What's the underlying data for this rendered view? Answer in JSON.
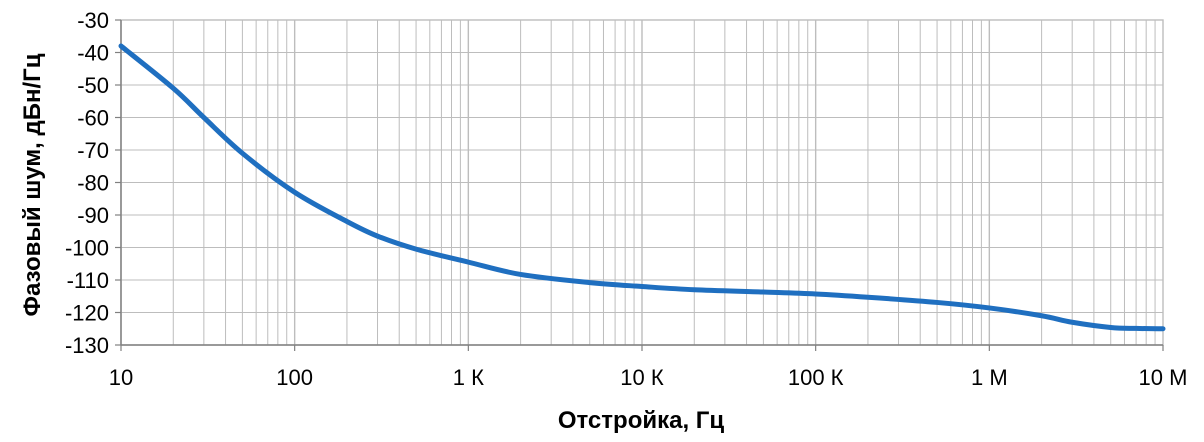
{
  "chart_data": {
    "type": "line",
    "xscale": "log",
    "xlim": [
      10,
      10000000
    ],
    "ylim": [
      -130,
      -30
    ],
    "xlabel": "Отстройка, Гц",
    "ylabel": "Фазовый шум, дБн/Гц",
    "x_ticks": [
      {
        "value": 10,
        "label": "10"
      },
      {
        "value": 100,
        "label": "100"
      },
      {
        "value": 1000,
        "label": "1 К"
      },
      {
        "value": 10000,
        "label": "10 К"
      },
      {
        "value": 100000,
        "label": "100 К"
      },
      {
        "value": 1000000,
        "label": "1 М"
      },
      {
        "value": 10000000,
        "label": "10 М"
      }
    ],
    "y_ticks": [
      {
        "value": -30,
        "label": "-30"
      },
      {
        "value": -40,
        "label": "-40"
      },
      {
        "value": -50,
        "label": "-50"
      },
      {
        "value": -60,
        "label": "-60"
      },
      {
        "value": -70,
        "label": "-70"
      },
      {
        "value": -80,
        "label": "-80"
      },
      {
        "value": -90,
        "label": "-90"
      },
      {
        "value": -100,
        "label": "-100"
      },
      {
        "value": -110,
        "label": "-110"
      },
      {
        "value": -120,
        "label": "-120"
      },
      {
        "value": -130,
        "label": "-130"
      }
    ],
    "grid": true,
    "legend": "none",
    "series": [
      {
        "color": "#1f6fc0",
        "x": [
          10,
          20,
          30,
          50,
          100,
          200,
          300,
          500,
          1000,
          2000,
          5000,
          10000,
          20000,
          50000,
          100000,
          200000,
          500000,
          1000000,
          2000000,
          3000000,
          5000000,
          7000000,
          10000000
        ],
        "y": [
          -38,
          -51,
          -60,
          -71,
          -83,
          -92,
          -96.5,
          -100.5,
          -104.5,
          -108.3,
          -110.8,
          -112,
          -113,
          -113.7,
          -114.3,
          -115.3,
          -116.9,
          -118.6,
          -121,
          -123,
          -124.6,
          -124.9,
          -125
        ]
      }
    ]
  },
  "colors": {
    "grid": "#bdbdbd",
    "axis": "#808080",
    "line": "#1f6fc0"
  }
}
